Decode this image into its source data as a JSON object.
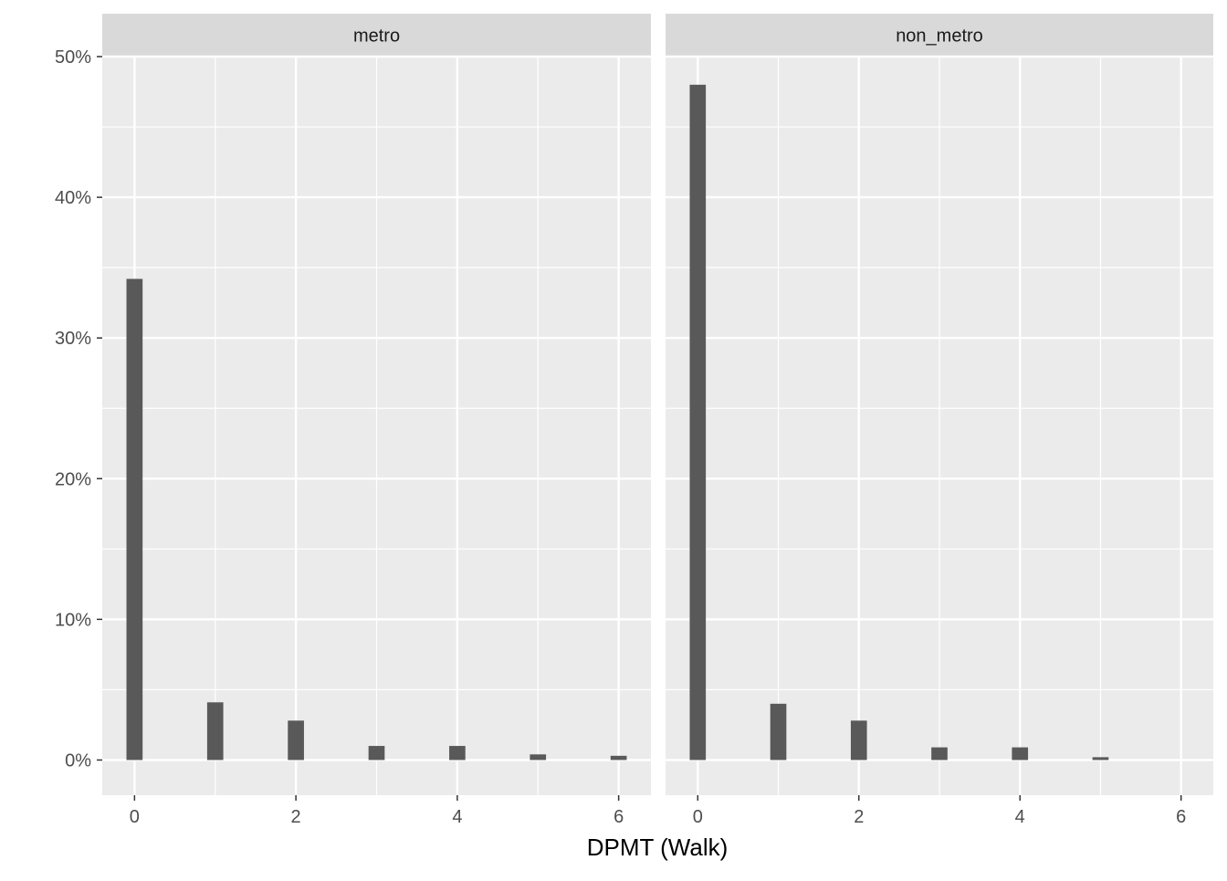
{
  "chart_data": {
    "type": "bar",
    "xlabel": "DPMT (Walk)",
    "ylabel": "",
    "xlim": [
      -0.4,
      6.4
    ],
    "ylim": [
      -0.025,
      0.5
    ],
    "x_ticks": [
      0,
      2,
      4,
      6
    ],
    "x_tick_labels": [
      "0",
      "2",
      "4",
      "6"
    ],
    "x_minor_ticks": [
      1,
      3,
      5
    ],
    "y_ticks": [
      0,
      0.1,
      0.2,
      0.3,
      0.4,
      0.5
    ],
    "y_tick_labels": [
      "0%",
      "10%",
      "20%",
      "30%",
      "40%",
      "50%"
    ],
    "y_minor_ticks": [
      0.05,
      0.15,
      0.25,
      0.35,
      0.45
    ],
    "bar_width": 0.2,
    "grid": true,
    "colors": {
      "panel_background": "#ebebeb",
      "strip_background": "#d9d9d9",
      "grid_line": "#ffffff",
      "bar_fill": "#595959",
      "tick_mark": "#333333"
    },
    "panels": [
      {
        "name": "metro",
        "x": [
          0,
          1,
          2,
          3,
          4,
          5,
          6
        ],
        "values": [
          0.342,
          0.041,
          0.028,
          0.01,
          0.01,
          0.004,
          0.003
        ]
      },
      {
        "name": "non_metro",
        "x": [
          0,
          1,
          2,
          3,
          4,
          5
        ],
        "values": [
          0.48,
          0.04,
          0.028,
          0.009,
          0.009,
          0.002
        ]
      }
    ]
  }
}
